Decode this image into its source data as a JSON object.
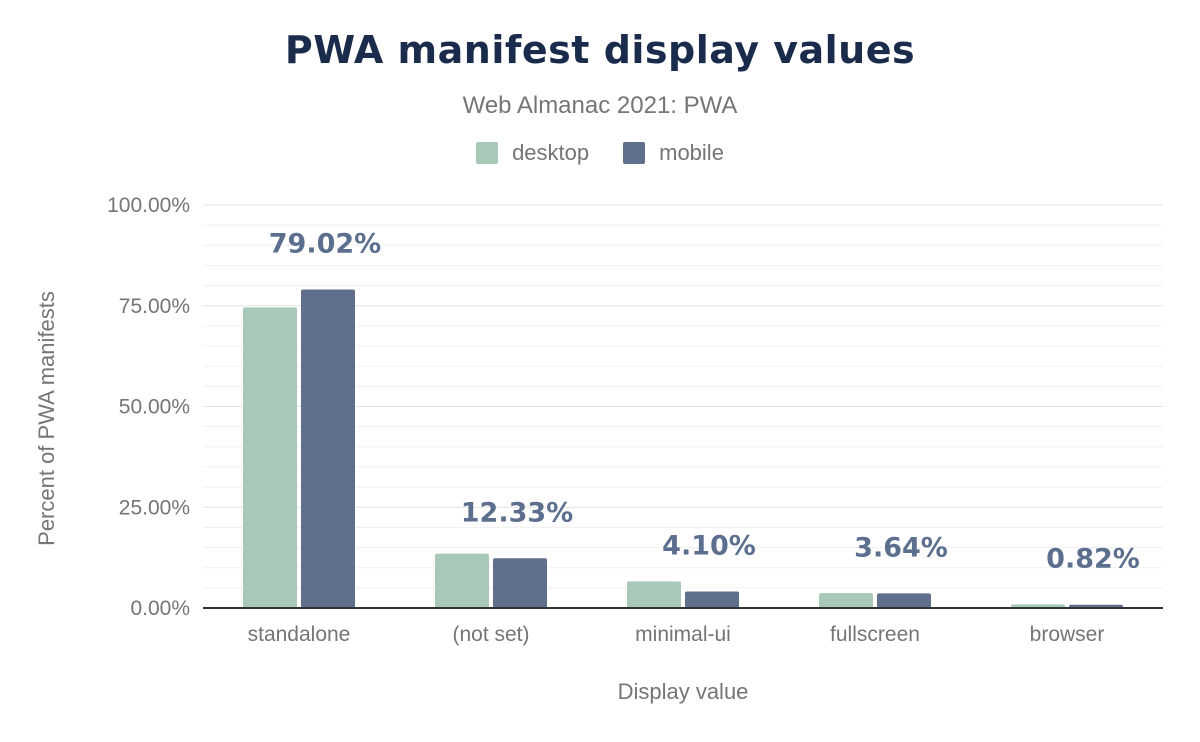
{
  "chart_data": {
    "type": "bar",
    "title": "PWA manifest display values",
    "subtitle": "Web Almanac 2021: PWA",
    "xlabel": "Display value",
    "ylabel": "Percent of PWA manifests",
    "categories": [
      "standalone",
      "(not set)",
      "minimal-ui",
      "fullscreen",
      "browser"
    ],
    "series": [
      {
        "name": "desktop",
        "color": "#a8c9b8",
        "values": [
          74.6,
          13.5,
          6.6,
          3.7,
          0.9
        ]
      },
      {
        "name": "mobile",
        "color": "#5f6f8c",
        "values": [
          79.02,
          12.33,
          4.1,
          3.64,
          0.82
        ]
      }
    ],
    "data_labels": [
      "79.02%",
      "12.33%",
      "4.10%",
      "3.64%",
      "0.82%"
    ],
    "ylim": [
      0,
      100
    ],
    "yticks": [
      "0.00%",
      "25.00%",
      "50.00%",
      "75.00%",
      "100.00%"
    ],
    "legend_position": "top-center",
    "grid": true
  }
}
